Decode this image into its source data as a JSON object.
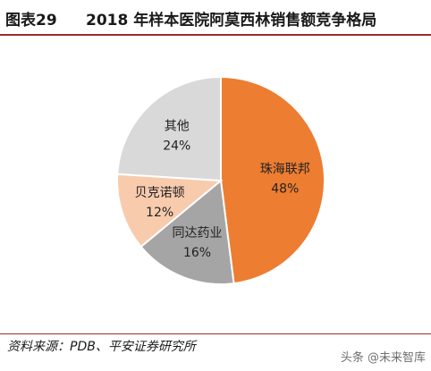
{
  "header": {
    "figure_label": "图表29",
    "title": "2018 年样本医院阿莫西林销售额竞争格局"
  },
  "chart_data": {
    "type": "pie",
    "title": "2018 年样本医院阿莫西林销售额竞争格局",
    "slices": [
      {
        "name": "珠海联邦",
        "value": 48,
        "value_label": "48%",
        "color": "#ED7D31"
      },
      {
        "name": "同达药业",
        "value": 16,
        "value_label": "16%",
        "color": "#A5A5A5"
      },
      {
        "name": "贝克诺顿",
        "value": 12,
        "value_label": "12%",
        "color": "#F8CBAD"
      },
      {
        "name": "其他",
        "value": 24,
        "value_label": "24%",
        "color": "#D9D9D9"
      }
    ],
    "start_angle_deg": 0,
    "direction": "clockwise"
  },
  "footer": {
    "source": "资料来源：PDB、平安证券研究所",
    "watermark": "头条 @未来智库"
  }
}
